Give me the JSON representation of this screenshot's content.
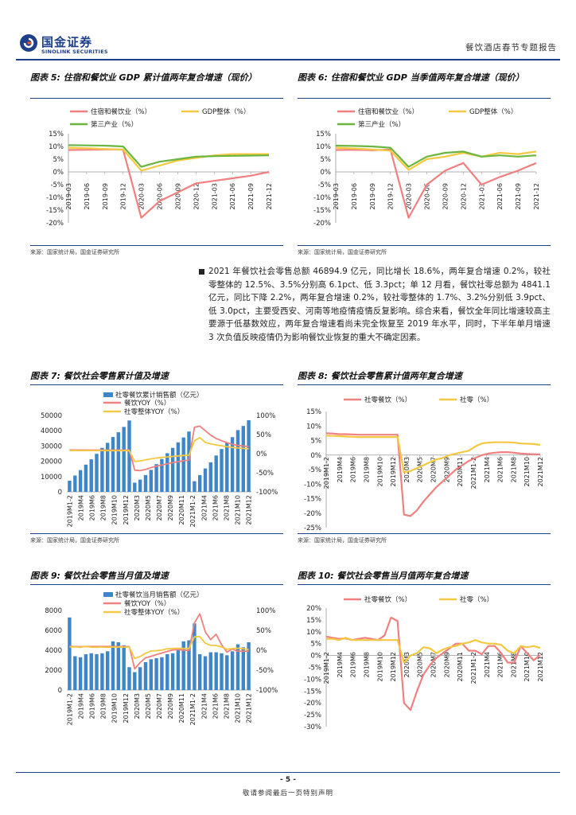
{
  "header": {
    "logo_cn": "国金证券",
    "logo_en": "SINOLINK SECURITIES",
    "report_title": "餐饮酒店春节专题报告"
  },
  "figures": {
    "fig5": {
      "title": "图表 5: 住宿和餐饮业 GDP 累计值两年复合增速（现价）",
      "source": "来源：国家统计局，国金证券研究所"
    },
    "fig6": {
      "title": "图表 6: 住宿和餐饮业 GDP 当季值两年复合增速（现价）",
      "source": "来源：国家统计局，国金证券研究所"
    },
    "fig7": {
      "title": "图表 7: 餐饮社会零售累计值及增速",
      "source": "来源：国家统计局，国金证券研究所"
    },
    "fig8": {
      "title": "图表 8: 餐饮社会零售累计值两年复合增速",
      "source": "来源：国家统计局，国金证券研究所"
    },
    "fig9": {
      "title": "图表 9: 餐饮社会零售当月值及增速",
      "source": "来源：国家统计局，国金证券研究所"
    },
    "fig10": {
      "title": "图表 10: 餐饮社会零售当月值两年复合增速",
      "source": "来源：国家统计局，国金证券研究所"
    }
  },
  "paragraph": "2021 年餐饮社会零售总额 46894.9 亿元，同比增长 18.6%，两年复合增速 0.2%，较社零整体的 12.5%、3.5%分别高 6.1pct、低 3.3pct；单 12 月看，餐饮社零总额为 4841.1 亿元，同比下降 2.2%，两年复合增速 0.2%，较社零整体的 1.7%、3.2%分别低 3.9pct、低 3.0pct，主要受西安、河南等地疫情疫情反复影响。综合来看，餐饮全年同比增速较高主要源于低基数效应，两年复合增速看尚未完全恢复至 2019 年水平，同时，下半年单月增速 3 次负值反映疫情仍为影响餐饮业恢复的重大不确定因素。",
  "footer": {
    "page": "- 5 -",
    "disclaimer": "敬请参阅最后一页特别声明"
  },
  "colors": {
    "brand": "#1e3f8a",
    "pink": "#f08080",
    "yellow": "#f5c842",
    "green": "#6bb541",
    "blue": "#3f86c8"
  },
  "chart_data": [
    {
      "id": "fig5",
      "type": "line",
      "categories": [
        "2019-03",
        "2019-06",
        "2019-09",
        "2019-12",
        "2020-03",
        "2020-06",
        "2020-09",
        "2020-12",
        "2021-03",
        "2021-06",
        "2021-09",
        "2021-12"
      ],
      "series": [
        {
          "name": "住宿和餐饮业（%）",
          "values": [
            8.6,
            8.7,
            8.8,
            8.8,
            -18.0,
            -11.5,
            -8.0,
            -4.5,
            -3.5,
            -2.5,
            -1.5,
            0.0
          ]
        },
        {
          "name": "GDP整体（%）",
          "values": [
            9.5,
            9.3,
            9.0,
            8.8,
            0.5,
            2.5,
            4.5,
            5.5,
            6.5,
            7.0,
            7.0,
            7.0
          ]
        },
        {
          "name": "第三产业（%）",
          "values": [
            10.5,
            10.4,
            10.3,
            10.0,
            2.0,
            4.0,
            5.0,
            6.0,
            6.2,
            6.3,
            6.4,
            6.5
          ]
        }
      ],
      "ylim": [
        -20,
        15
      ],
      "yticks": [
        "15%",
        "10%",
        "5%",
        "0%",
        "-5%",
        "-10%",
        "-15%",
        "-20%"
      ]
    },
    {
      "id": "fig6",
      "type": "line",
      "categories": [
        "2019-03",
        "2019-06",
        "2019-09",
        "2019-12",
        "2020-03",
        "2020-06",
        "2020-09",
        "2020-12",
        "2021-03",
        "2021-06",
        "2021-09",
        "2021-12"
      ],
      "series": [
        {
          "name": "住宿和餐饮业（%）",
          "values": [
            8.6,
            8.7,
            8.5,
            8.8,
            -18.0,
            -5.0,
            0.5,
            3.5,
            -5.0,
            -2.0,
            0.5,
            3.5
          ]
        },
        {
          "name": "GDP整体（%）",
          "values": [
            9.5,
            9.2,
            8.8,
            8.3,
            0.8,
            5.0,
            6.0,
            7.5,
            6.0,
            7.5,
            7.0,
            8.0
          ]
        },
        {
          "name": "第三产业（%）",
          "values": [
            10.3,
            10.2,
            10.0,
            9.5,
            2.0,
            6.0,
            7.5,
            8.0,
            6.0,
            6.5,
            6.0,
            6.5
          ]
        }
      ],
      "ylim": [
        -20,
        15
      ],
      "yticks": [
        "15%",
        "10%",
        "5%",
        "0%",
        "-5%",
        "-10%",
        "-15%",
        "-20%"
      ]
    },
    {
      "id": "fig7",
      "type": "bar+line",
      "x_ticks": [
        "2019M1-2",
        "2019M4",
        "2019M6",
        "2019M8",
        "2019M10",
        "2019M12",
        "2020M3",
        "2020M5",
        "2020M7",
        "2020M9",
        "2020M11",
        "2021M1-2",
        "2021M4",
        "2021M6",
        "2021M8",
        "2021M10",
        "2021M12"
      ],
      "bars": {
        "name": "社零餐饮累计销售额（亿元）",
        "values": [
          7300,
          10700,
          14200,
          17800,
          21300,
          24900,
          28800,
          32100,
          35900,
          39000,
          42500,
          46700,
          6000,
          8000,
          11000,
          14400,
          18100,
          21500,
          25300,
          28800,
          32400,
          35600,
          39500,
          7000,
          11000,
          15300,
          19300,
          23800,
          28000,
          32300,
          35800,
          40400,
          43100,
          46900
        ]
      },
      "series": [
        {
          "name": "餐饮YOY（%）",
          "values": [
            9.7,
            9.6,
            9.5,
            9.4,
            9.4,
            9.4,
            9.4,
            9.4,
            9.4,
            9.4,
            9.4,
            9.4,
            -43.1,
            -44.3,
            -41.4,
            -36.5,
            -32.8,
            -29.6,
            -26.6,
            -23.4,
            -21.1,
            -18.5,
            -16.6,
            68.9,
            72.0,
            60.0,
            48.6,
            39.8,
            34.0,
            29.0,
            24.6,
            21.6,
            20.0,
            18.6
          ]
        },
        {
          "name": "社零整体YOY（%）",
          "values": [
            8.2,
            8.3,
            8.2,
            8.1,
            8.1,
            8.1,
            8.1,
            8.0,
            8.0,
            8.0,
            8.0,
            8.0,
            -20.5,
            -19.0,
            -16.2,
            -13.5,
            -11.4,
            -9.8,
            -8.6,
            -7.3,
            -5.9,
            -4.8,
            -3.9,
            33.8,
            42.0,
            29.6,
            25.7,
            23.0,
            20.7,
            18.1,
            16.4,
            14.8,
            13.7,
            12.5
          ]
        }
      ],
      "ylim_left": [
        0,
        50000
      ],
      "ylim_right": [
        -100,
        100
      ],
      "yticks_left": [
        "50000",
        "40000",
        "30000",
        "20000",
        "10000",
        "0"
      ],
      "yticks_right": [
        "100%",
        "50%",
        "0%",
        "-50%",
        "-100%"
      ]
    },
    {
      "id": "fig8",
      "type": "line",
      "x_ticks": [
        "2019M1-2",
        "2019M4",
        "2019M6",
        "2019M8",
        "2019M10",
        "2019M12",
        "2020M3",
        "2020M5",
        "2020M7",
        "2020M9",
        "2020M11",
        "2021M1-2",
        "2021M4",
        "2021M6",
        "2021M8",
        "2021M10",
        "2021M12"
      ],
      "series": [
        {
          "name": "社零餐饮（%）",
          "values": [
            7.5,
            7.4,
            7.2,
            7.2,
            7.1,
            7.0,
            7.0,
            7.0,
            7.0,
            7.0,
            7.0,
            7.0,
            -20.5,
            -21.0,
            -19.0,
            -16.0,
            -13.5,
            -11.0,
            -9.0,
            -7.0,
            -5.0,
            -3.5,
            -2.0,
            -1.0,
            0.0,
            0.5,
            0.8,
            1.0,
            1.0,
            0.8,
            0.5,
            0.4,
            0.3,
            0.2
          ]
        },
        {
          "name": "社零（%）",
          "values": [
            6.7,
            6.6,
            6.5,
            6.4,
            6.3,
            6.2,
            6.2,
            6.2,
            6.2,
            6.2,
            6.2,
            6.2,
            -6.0,
            -5.5,
            -4.5,
            -3.5,
            -2.5,
            -1.5,
            -1.0,
            0.0,
            0.5,
            1.0,
            1.5,
            3.0,
            4.0,
            4.3,
            4.4,
            4.4,
            4.4,
            4.3,
            4.0,
            3.9,
            3.8,
            3.5
          ]
        }
      ],
      "ylim": [
        -25,
        15
      ],
      "yticks": [
        "15%",
        "10%",
        "5%",
        "0%",
        "-5%",
        "-10%",
        "-15%",
        "-20%",
        "-25%"
      ]
    },
    {
      "id": "fig9",
      "type": "bar+line",
      "x_ticks": [
        "2019M1-2",
        "2019M4",
        "2019M6",
        "2019M8",
        "2019M10",
        "2019M12",
        "2020M3",
        "2020M5",
        "2020M7",
        "2020M9",
        "2020M11",
        "2021M1-2",
        "2021M4",
        "2021M6",
        "2021M8",
        "2021M10",
        "2021M12"
      ],
      "bars": {
        "name": "社零餐饮当月销售额（亿元）",
        "values": [
          7300,
          3400,
          3300,
          3600,
          3700,
          3600,
          3700,
          3900,
          4900,
          4800,
          4500,
          2300,
          1800,
          2300,
          2800,
          3100,
          3200,
          3300,
          3600,
          3700,
          4100,
          4900,
          5000,
          6700,
          3600,
          3400,
          3800,
          3800,
          3700,
          3500,
          3900,
          4600,
          4300,
          4800
        ]
      },
      "series": [
        {
          "name": "餐饮YOY（%）",
          "values": [
            9.7,
            9.4,
            9.1,
            9.4,
            9.5,
            9.4,
            9.4,
            9.4,
            9.4,
            9.4,
            9.2,
            9.2,
            -46.8,
            -31.1,
            -18.9,
            -15.2,
            -11.0,
            -7.0,
            -2.9,
            0.8,
            1.7,
            0.4,
            -0.6,
            68.9,
            91.6,
            46.4,
            26.6,
            40.2,
            14.1,
            -4.5,
            3.1,
            -2.6,
            -2.2,
            -2.2
          ]
        },
        {
          "name": "社零整体YOY（%）",
          "values": [
            8.2,
            8.7,
            7.2,
            9.8,
            7.6,
            7.5,
            8.0,
            7.2,
            8.0,
            8.0,
            8.0,
            8.0,
            -20.5,
            -15.8,
            -7.5,
            -1.8,
            -1.1,
            0.5,
            3.3,
            4.3,
            5.0,
            4.6,
            4.4,
            33.8,
            34.2,
            17.7,
            12.4,
            12.1,
            8.5,
            2.5,
            4.4,
            4.9,
            3.9,
            1.7
          ]
        }
      ],
      "ylim_left": [
        0,
        8000
      ],
      "ylim_right": [
        -100,
        100
      ],
      "yticks_left": [
        "8000",
        "6000",
        "4000",
        "2000",
        "0"
      ],
      "yticks_right": [
        "100%",
        "50%",
        "0%",
        "-50%",
        "-100%"
      ]
    },
    {
      "id": "fig10",
      "type": "line",
      "x_ticks": [
        "2019M1-2",
        "2019M4",
        "2019M6",
        "2019M8",
        "2019M10",
        "2019M12",
        "2020M3",
        "2020M5",
        "2020M7",
        "2020M9",
        "2020M11",
        "2021M1-2",
        "2021M4",
        "2021M6",
        "2021M8",
        "2021M10",
        "2021M12"
      ],
      "series": [
        {
          "name": "社零餐饮（%）",
          "values": [
            8.0,
            7.5,
            7.0,
            7.2,
            6.5,
            7.0,
            7.5,
            7.0,
            6.5,
            8.5,
            16.0,
            14.5,
            -20.0,
            -23.0,
            -15.0,
            -8.0,
            -4.0,
            -1.0,
            1.0,
            3.0,
            5.0,
            5.0,
            2.0,
            2.0,
            0.5,
            4.0,
            4.0,
            1.0,
            -3.0,
            -3.0,
            4.0,
            1.0,
            -2.0,
            0.2
          ]
        },
        {
          "name": "社零（%）",
          "values": [
            7.0,
            7.0,
            6.5,
            7.5,
            6.5,
            6.5,
            6.5,
            6.5,
            6.5,
            6.5,
            6.5,
            6.5,
            -3.0,
            0.0,
            1.0,
            3.5,
            3.0,
            1.0,
            2.5,
            3.5,
            4.0,
            5.0,
            5.5,
            6.5,
            5.5,
            5.0,
            5.0,
            4.5,
            2.0,
            1.0,
            4.0,
            3.5,
            4.0,
            3.2
          ]
        }
      ],
      "ylim": [
        -30,
        20
      ],
      "yticks": [
        "20%",
        "15%",
        "10%",
        "5%",
        "0%",
        "-5%",
        "-10%",
        "-15%",
        "-20%",
        "-25%",
        "-30%"
      ]
    }
  ]
}
